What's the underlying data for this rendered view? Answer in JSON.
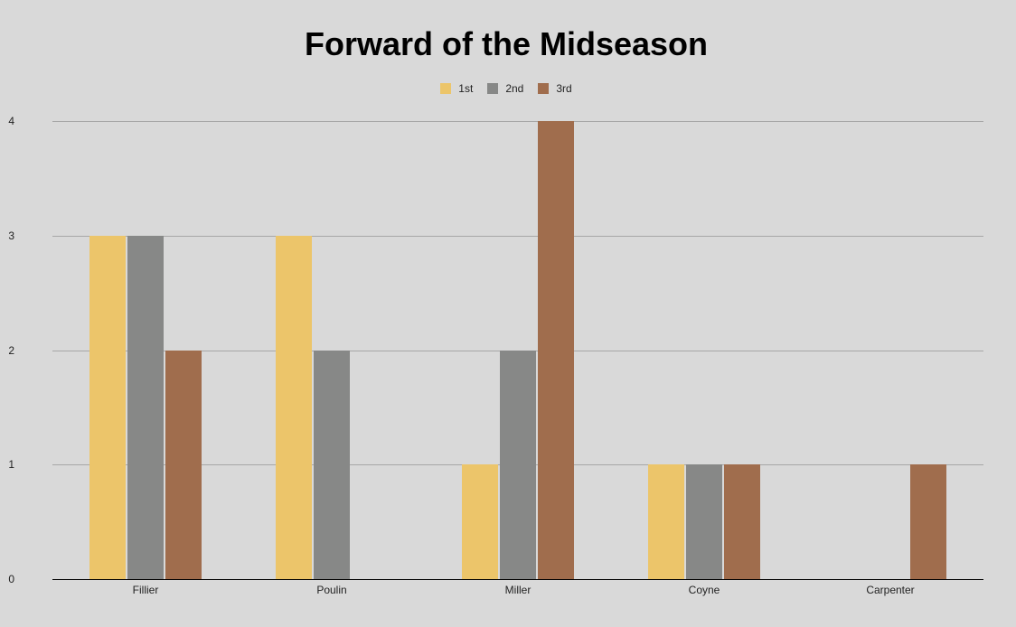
{
  "chart_data": {
    "type": "bar",
    "title": "Forward of the Midseason",
    "xlabel": "",
    "ylabel": "",
    "categories": [
      "Fillier",
      "Poulin",
      "Miller",
      "Coyne",
      "Carpenter"
    ],
    "series": [
      {
        "name": "1st",
        "color": "#ecc56a",
        "values": [
          3,
          3,
          1,
          1,
          0
        ]
      },
      {
        "name": "2nd",
        "color": "#878887",
        "values": [
          3,
          2,
          2,
          1,
          0
        ]
      },
      {
        "name": "3rd",
        "color": "#a06d4d",
        "values": [
          2,
          0,
          4,
          1,
          1
        ]
      }
    ],
    "ylim": [
      0,
      4
    ],
    "yticks": [
      0,
      1,
      2,
      3,
      4
    ],
    "grid": true,
    "legend_position": "top"
  }
}
